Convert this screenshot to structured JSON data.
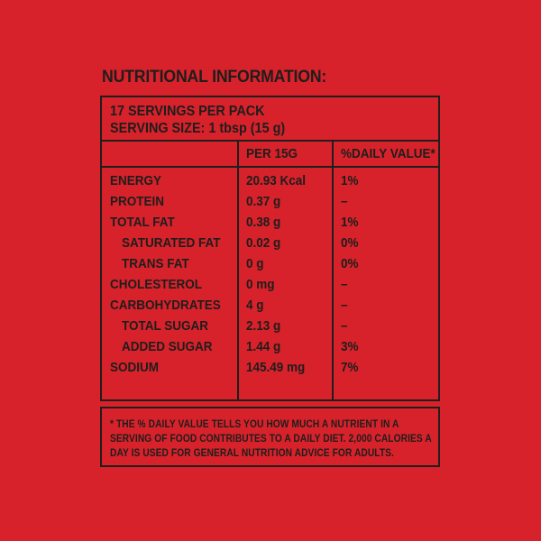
{
  "colors": {
    "background": "#D7222B",
    "ink": "#1E1E1C"
  },
  "title": "NUTRITIONAL INFORMATION:",
  "serving_info": {
    "servings_per_pack": "17 SERVINGS PER PACK",
    "serving_size": "SERVING SIZE: 1 tbsp (15 g)"
  },
  "table": {
    "columns": [
      "",
      "PER 15G",
      "%DAILY VALUE*"
    ],
    "rows": [
      {
        "label": "ENERGY",
        "amount": "20.93 Kcal",
        "dv": "1%"
      },
      {
        "label": "PROTEIN",
        "amount": "0.37 g",
        "dv": "–"
      },
      {
        "label": "TOTAL FAT",
        "amount": "0.38 g",
        "dv": "1%"
      },
      {
        "label": "SATURATED FAT",
        "amount": "0.02 g",
        "dv": "0%"
      },
      {
        "label": "TRANS FAT",
        "amount": "0 g",
        "dv": "0%"
      },
      {
        "label": "CHOLESTEROL",
        "amount": "0 mg",
        "dv": "–"
      },
      {
        "label": "CARBOHYDRATES",
        "amount": "4 g",
        "dv": "–"
      },
      {
        "label": "TOTAL SUGAR",
        "amount": "2.13 g",
        "dv": "–"
      },
      {
        "label": "ADDED SUGAR",
        "amount": "1.44 g",
        "dv": "3%"
      },
      {
        "label": "SODIUM",
        "amount": "145.49 mg",
        "dv": "7%"
      }
    ]
  },
  "footnote": "* THE % DAILY VALUE TELLS YOU HOW MUCH A NUTRIENT IN A SERVING OF FOOD CONTRIBUTES TO A DAILY DIET. 2,000 CALORIES A DAY IS USED FOR GENERAL NUTRITION ADVICE FOR ADULTS."
}
